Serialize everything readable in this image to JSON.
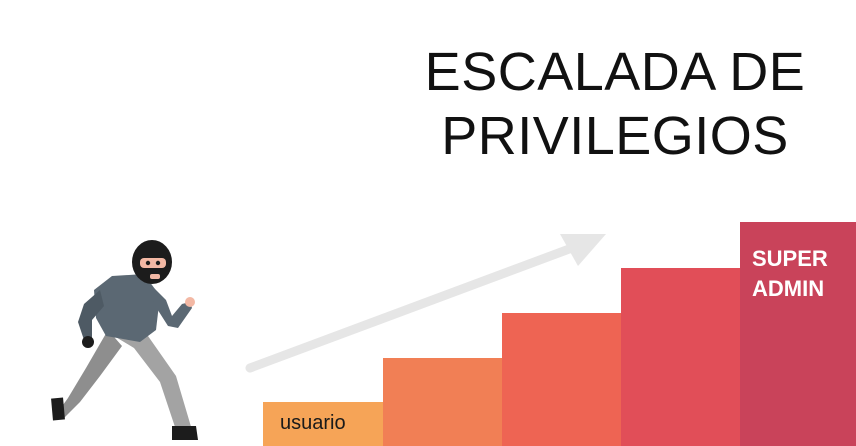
{
  "title": {
    "line1": "ESCALADA DE",
    "line2": "PRIVILEGIOS"
  },
  "steps": {
    "first_label": "usuario",
    "top_label_line1": "SUPER",
    "top_label_line2": "ADMIN"
  },
  "colors": {
    "step1": "#f6a457",
    "step2": "#f17f55",
    "step3": "#ee6453",
    "step4": "#e14e58",
    "step5": "#c9435a",
    "arrow": "#e6e6e6",
    "shirt": "#5b6873",
    "pants": "#9a9a9a",
    "mask": "#1c1c1c",
    "skin": "#f3b8a4"
  }
}
